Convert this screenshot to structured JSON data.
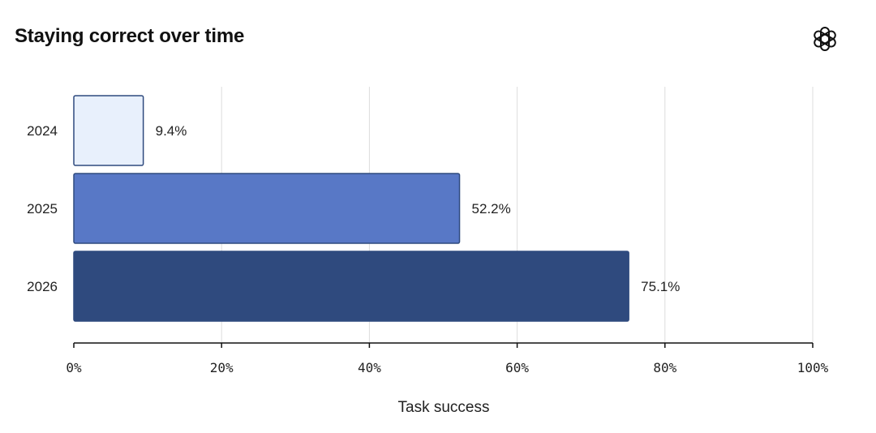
{
  "header": {
    "title": "Staying correct over time",
    "logo_icon": "openai-logo-icon"
  },
  "chart_data": {
    "type": "bar",
    "orientation": "horizontal",
    "title": "Staying correct over time",
    "categories": [
      "2024",
      "2025",
      "2026"
    ],
    "values": [
      9.4,
      52.2,
      75.1
    ],
    "value_labels": [
      "9.4%",
      "52.2%",
      "75.1%"
    ],
    "bar_colors": [
      "#e8f0fc",
      "#5878c6",
      "#2f4a7e"
    ],
    "bar_stroke": "#2f4a7e",
    "xlabel": "Task success",
    "ylabel": "",
    "xlim": [
      0,
      100
    ],
    "xticks": [
      0,
      20,
      40,
      60,
      80,
      100
    ],
    "xtick_labels": [
      "0%",
      "20%",
      "40%",
      "60%",
      "80%",
      "100%"
    ],
    "grid": "vertical",
    "grid_color": "#dddddd",
    "legend": "none"
  }
}
